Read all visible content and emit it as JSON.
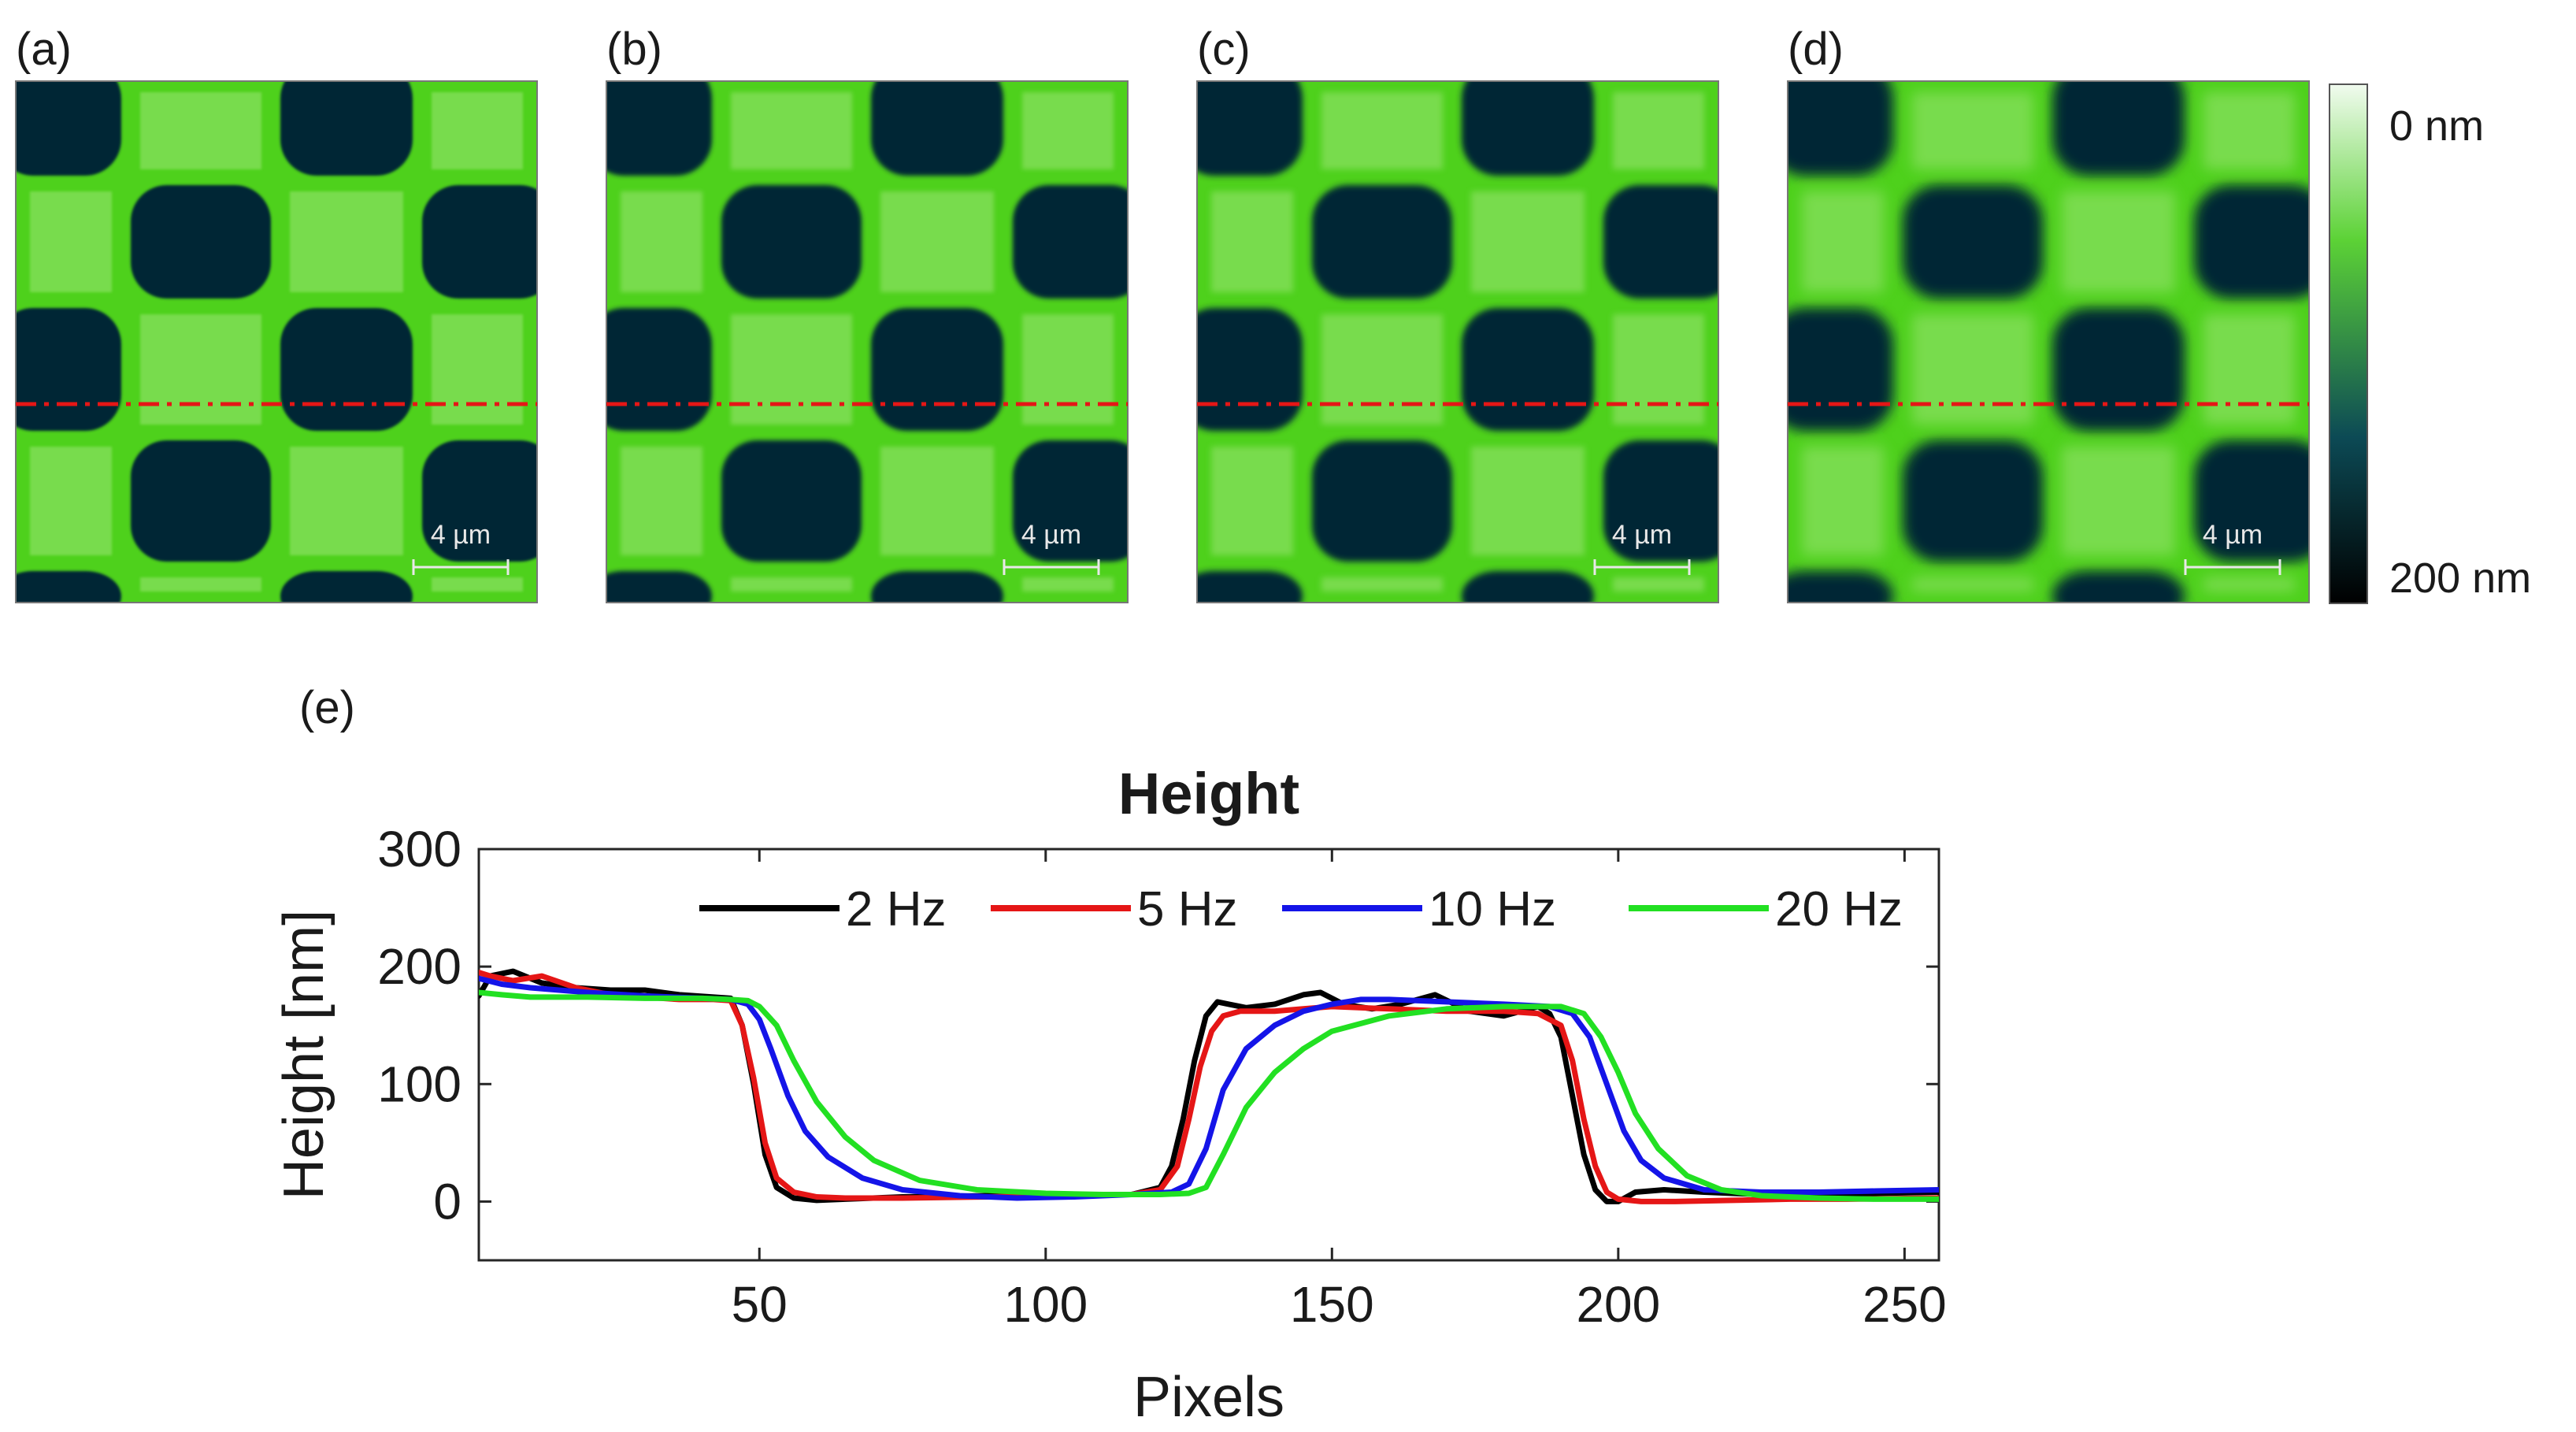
{
  "figure": {
    "panels": [
      {
        "label": "(a)",
        "scale_bar": "4 µm"
      },
      {
        "label": "(b)",
        "scale_bar": "4 µm"
      },
      {
        "label": "(c)",
        "scale_bar": "4 µm"
      },
      {
        "label": "(d)",
        "scale_bar": "4 µm"
      }
    ],
    "colorbar": {
      "top_label": "0 nm",
      "bottom_label": "200 nm",
      "colors": [
        "#f1fbef",
        "#5cd236",
        "#0c4a55",
        "#000000"
      ]
    },
    "colors": {
      "green": "#4ed11c",
      "bright": "#c9f2a8",
      "dark": "#052734",
      "line": "#e51616"
    },
    "profile_label": "(e)"
  },
  "chart_data": {
    "type": "line",
    "title": "Height",
    "xlabel": "Pixels",
    "ylabel": "Height [nm]",
    "xlim": [
      1,
      256
    ],
    "ylim": [
      -50,
      300
    ],
    "xticks": [
      50,
      100,
      150,
      200,
      250
    ],
    "yticks": [
      0,
      100,
      200,
      300
    ],
    "legend_position": "top",
    "series": [
      {
        "name": "2 Hz",
        "color": "#000000",
        "x": [
          1,
          3,
          7,
          12,
          18,
          24,
          30,
          36,
          42,
          45,
          47,
          49,
          51,
          53,
          56,
          60,
          65,
          75,
          90,
          100,
          110,
          115,
          120,
          122,
          124,
          126,
          128,
          130,
          132,
          135,
          140,
          145,
          148,
          152,
          157,
          162,
          168,
          174,
          180,
          186,
          188,
          190,
          192,
          194,
          196,
          198,
          200,
          203,
          208,
          215,
          225,
          235,
          245,
          256
        ],
        "y": [
          175,
          192,
          196,
          186,
          182,
          180,
          180,
          176,
          174,
          173,
          150,
          100,
          40,
          12,
          3,
          1,
          2,
          4,
          5,
          6,
          6,
          6,
          12,
          30,
          70,
          120,
          158,
          170,
          168,
          165,
          168,
          176,
          178,
          168,
          164,
          168,
          176,
          162,
          158,
          166,
          160,
          140,
          90,
          40,
          10,
          0,
          0,
          8,
          10,
          8,
          6,
          6,
          7,
          8
        ]
      },
      {
        "name": "5 Hz",
        "color": "#e51616",
        "x": [
          1,
          3,
          7,
          12,
          18,
          24,
          30,
          36,
          42,
          45,
          47,
          49,
          51,
          53,
          56,
          60,
          65,
          75,
          90,
          100,
          110,
          115,
          120,
          123,
          125,
          127,
          129,
          131,
          134,
          140,
          145,
          150,
          160,
          170,
          180,
          186,
          190,
          192,
          194,
          196,
          198,
          200,
          204,
          210,
          220,
          230,
          240,
          256
        ],
        "y": [
          195,
          192,
          188,
          192,
          182,
          176,
          174,
          172,
          172,
          171,
          150,
          105,
          50,
          20,
          8,
          4,
          3,
          3,
          4,
          5,
          6,
          6,
          10,
          30,
          70,
          115,
          145,
          158,
          162,
          162,
          164,
          166,
          164,
          162,
          162,
          160,
          150,
          120,
          70,
          30,
          8,
          2,
          0,
          0,
          1,
          2,
          2,
          3
        ]
      },
      {
        "name": "10 Hz",
        "color": "#1414e8",
        "x": [
          1,
          5,
          10,
          20,
          30,
          40,
          45,
          48,
          50,
          52,
          55,
          58,
          62,
          68,
          75,
          85,
          95,
          105,
          115,
          122,
          125,
          128,
          131,
          135,
          140,
          145,
          150,
          155,
          160,
          170,
          180,
          188,
          192,
          195,
          198,
          201,
          204,
          208,
          215,
          225,
          235,
          245,
          256
        ],
        "y": [
          190,
          185,
          182,
          178,
          175,
          173,
          172,
          168,
          155,
          130,
          90,
          60,
          38,
          20,
          10,
          5,
          3,
          4,
          6,
          8,
          15,
          45,
          95,
          130,
          150,
          162,
          168,
          172,
          172,
          170,
          168,
          166,
          160,
          140,
          100,
          60,
          35,
          20,
          10,
          8,
          8,
          9,
          10
        ]
      },
      {
        "name": "20 Hz",
        "color": "#22e022",
        "x": [
          1,
          5,
          10,
          20,
          30,
          40,
          45,
          48,
          50,
          53,
          56,
          60,
          65,
          70,
          78,
          88,
          100,
          110,
          120,
          125,
          128,
          131,
          135,
          140,
          145,
          150,
          160,
          170,
          180,
          190,
          194,
          197,
          200,
          203,
          207,
          212,
          218,
          225,
          235,
          245,
          256
        ],
        "y": [
          178,
          176,
          174,
          174,
          173,
          173,
          172,
          171,
          166,
          150,
          120,
          85,
          55,
          35,
          18,
          10,
          7,
          6,
          6,
          7,
          12,
          40,
          80,
          110,
          130,
          145,
          158,
          164,
          166,
          166,
          160,
          140,
          110,
          75,
          45,
          22,
          10,
          5,
          3,
          2,
          2
        ]
      }
    ]
  }
}
